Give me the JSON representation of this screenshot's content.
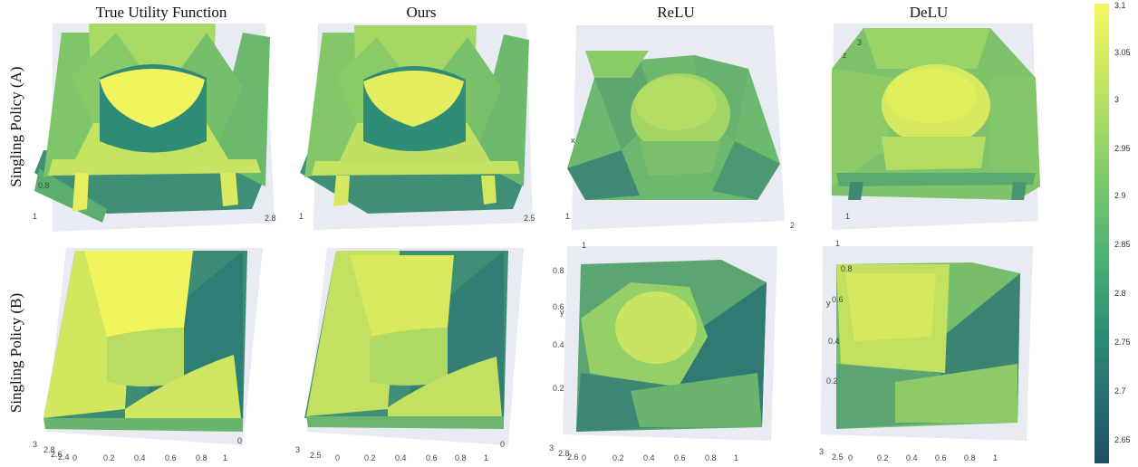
{
  "columns": [
    "True Utility Function",
    "Ours",
    "ReLU",
    "DeLU"
  ],
  "rows": [
    "Singling Policy (A)",
    "Singling Policy (B)"
  ],
  "colorbar": {
    "ticks": [
      "3.1",
      "3.05",
      "3",
      "2.95",
      "2.9",
      "2.85",
      "2.8",
      "2.75",
      "2.7",
      "2.65"
    ],
    "colors": [
      "#f4f760",
      "#cde85f",
      "#9ed666",
      "#6ec46e",
      "#46ad74",
      "#2f8f75",
      "#256f70",
      "#1f4e66"
    ]
  },
  "panel_ticks": {
    "a_true": [
      "0.8",
      "1",
      "2.8"
    ],
    "a_ours": [
      "1",
      "2.5"
    ],
    "a_relu": [
      "x",
      "1",
      "2"
    ],
    "a_delu": [
      "3",
      "z",
      "1"
    ],
    "b_true": [
      "3",
      "2.8",
      "2.6",
      "2.4",
      "0",
      "0.2",
      "0.4",
      "0.6",
      "0.8",
      "1",
      "0"
    ],
    "b_ours": [
      "3",
      "2.5",
      "0",
      "0.2",
      "0.4",
      "0.6",
      "0.8",
      "1",
      "0"
    ],
    "b_relu": [
      "1",
      "0.8",
      "y",
      "0.6",
      "0.4",
      "0.2",
      "3",
      "2.8",
      "2.6",
      "0",
      "0.2",
      "0.4",
      "0.6",
      "0.8",
      "1"
    ],
    "b_delu": [
      "1",
      "0.8",
      "y",
      "0.6",
      "0.4",
      "0.2",
      "3",
      "2.5",
      "0",
      "0.2",
      "0.4",
      "0.6",
      "0.8",
      "1"
    ]
  }
}
